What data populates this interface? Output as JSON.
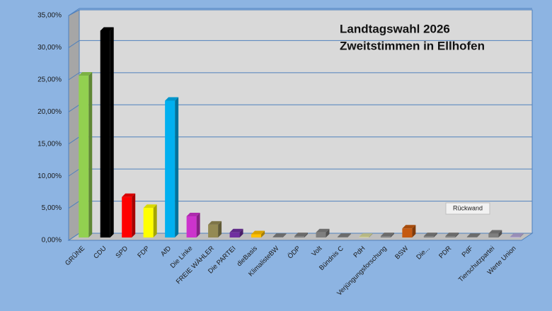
{
  "chart_data": {
    "type": "bar",
    "title": "Landtagswahl 2026",
    "subtitle": "Zweitstimmen in Ellhofen",
    "annotation": "Rückwand",
    "categories": [
      "GRÜNE",
      "CDU",
      "SPD",
      "FDP",
      "AfD",
      "Die Linke",
      "FREIE WÄHLER",
      "Die PARTEI",
      "dieBasis",
      "KlimalisteBW",
      "ÖDP",
      "Volt",
      "Bündnis C",
      "PdH",
      "Verjüngungsforschung",
      "BSW",
      "Die...",
      "PDR",
      "PdF",
      "Tierschutzpartei",
      "Werte Union"
    ],
    "values": [
      25.2,
      32.2,
      6.3,
      4.6,
      21.3,
      3.3,
      2.0,
      0.8,
      0.5,
      0.1,
      0.2,
      0.8,
      0.1,
      0.1,
      0.2,
      1.4,
      0.2,
      0.2,
      0.1,
      0.6,
      0.1
    ],
    "colors": [
      "#92d050",
      "#000000",
      "#ff0000",
      "#ffff00",
      "#00b0f0",
      "#cc33cc",
      "#948a54",
      "#7030a0",
      "#ffc000",
      "#7f7f7f",
      "#7f7f7f",
      "#7f7f7f",
      "#7f7f7f",
      "#d8d89a",
      "#7f7f7f",
      "#c55a11",
      "#7f7f7f",
      "#7f7f7f",
      "#7f7f7f",
      "#7f7f7f",
      "#b4a7d6"
    ],
    "ylim": [
      0,
      35
    ],
    "yticks": [
      {
        "value": 0,
        "label": "0,00%"
      },
      {
        "value": 5,
        "label": "5,00%"
      },
      {
        "value": 10,
        "label": "10,00%"
      },
      {
        "value": 15,
        "label": "15,00%"
      },
      {
        "value": 20,
        "label": "20,00%"
      },
      {
        "value": 25,
        "label": "25,00%"
      },
      {
        "value": 30,
        "label": "30,00%"
      },
      {
        "value": 35,
        "label": "35,00%"
      }
    ],
    "grid": true
  }
}
